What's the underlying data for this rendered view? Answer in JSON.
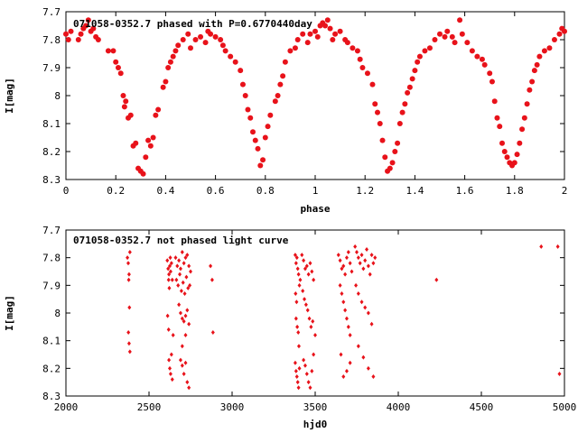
{
  "colors": {
    "points": "#e8121a",
    "axes": "#000000",
    "background": "#ffffff"
  },
  "chart_data": [
    {
      "type": "scatter",
      "title": "071058-0352.7 phased with P=0.6770440day",
      "xlabel": "phase",
      "ylabel": "I[mag]",
      "xlim": [
        0,
        2
      ],
      "ylim": [
        8.3,
        7.7
      ],
      "y_inverted": true,
      "grid": false,
      "marker": "filled-circle-large",
      "xticks": [
        "0",
        "0.2",
        "0.4",
        "0.6",
        "0.8",
        "1",
        "1.2",
        "1.4",
        "1.6",
        "1.8",
        "2"
      ],
      "yticks": [
        "7.7",
        "7.8",
        "7.9",
        "8",
        "8.1",
        "8.2",
        "8.3"
      ],
      "points": [
        [
          0.0,
          7.78
        ],
        [
          0.01,
          7.8
        ],
        [
          0.02,
          7.77
        ],
        [
          0.05,
          7.8
        ],
        [
          0.06,
          7.78
        ],
        [
          0.07,
          7.76
        ],
        [
          0.08,
          7.75
        ],
        [
          0.09,
          7.73
        ],
        [
          0.1,
          7.77
        ],
        [
          0.11,
          7.76
        ],
        [
          0.12,
          7.79
        ],
        [
          0.13,
          7.8
        ],
        [
          0.17,
          7.84
        ],
        [
          0.19,
          7.84
        ],
        [
          0.2,
          7.88
        ],
        [
          0.21,
          7.9
        ],
        [
          0.22,
          7.92
        ],
        [
          0.23,
          8.0
        ],
        [
          0.24,
          8.02
        ],
        [
          0.235,
          8.04
        ],
        [
          0.25,
          8.08
        ],
        [
          0.26,
          8.07
        ],
        [
          0.27,
          8.18
        ],
        [
          0.28,
          8.17
        ],
        [
          0.29,
          8.26
        ],
        [
          0.3,
          8.27
        ],
        [
          0.31,
          8.28
        ],
        [
          0.32,
          8.22
        ],
        [
          0.33,
          8.16
        ],
        [
          0.34,
          8.18
        ],
        [
          0.35,
          8.15
        ],
        [
          0.36,
          8.07
        ],
        [
          0.37,
          8.05
        ],
        [
          0.39,
          7.97
        ],
        [
          0.4,
          7.95
        ],
        [
          0.41,
          7.9
        ],
        [
          0.42,
          7.88
        ],
        [
          0.43,
          7.86
        ],
        [
          0.44,
          7.84
        ],
        [
          0.45,
          7.82
        ],
        [
          0.47,
          7.8
        ],
        [
          0.49,
          7.78
        ],
        [
          0.5,
          7.83
        ],
        [
          0.52,
          7.8
        ],
        [
          0.54,
          7.79
        ],
        [
          0.56,
          7.81
        ],
        [
          0.57,
          7.77
        ],
        [
          0.58,
          7.78
        ],
        [
          0.6,
          7.79
        ],
        [
          0.62,
          7.8
        ],
        [
          0.63,
          7.82
        ],
        [
          0.64,
          7.84
        ],
        [
          0.66,
          7.86
        ],
        [
          0.68,
          7.88
        ],
        [
          0.7,
          7.91
        ],
        [
          0.71,
          7.96
        ],
        [
          0.72,
          8.0
        ],
        [
          0.73,
          8.05
        ],
        [
          0.74,
          8.08
        ],
        [
          0.75,
          8.13
        ],
        [
          0.76,
          8.16
        ],
        [
          0.77,
          8.19
        ],
        [
          0.78,
          8.25
        ],
        [
          0.79,
          8.23
        ],
        [
          0.8,
          8.15
        ],
        [
          0.81,
          8.11
        ],
        [
          0.82,
          8.07
        ],
        [
          0.84,
          8.02
        ],
        [
          0.85,
          8.0
        ],
        [
          0.86,
          7.96
        ],
        [
          0.87,
          7.93
        ],
        [
          0.88,
          7.88
        ],
        [
          0.9,
          7.84
        ],
        [
          0.92,
          7.83
        ],
        [
          0.93,
          7.8
        ],
        [
          0.95,
          7.78
        ],
        [
          0.97,
          7.81
        ],
        [
          0.98,
          7.78
        ],
        [
          1.0,
          7.77
        ],
        [
          1.01,
          7.79
        ],
        [
          1.02,
          7.75
        ],
        [
          1.03,
          7.74
        ],
        [
          1.04,
          7.75
        ],
        [
          1.05,
          7.73
        ],
        [
          1.06,
          7.76
        ],
        [
          1.07,
          7.8
        ],
        [
          1.08,
          7.78
        ],
        [
          1.1,
          7.77
        ],
        [
          1.12,
          7.8
        ],
        [
          1.13,
          7.81
        ],
        [
          1.15,
          7.83
        ],
        [
          1.17,
          7.84
        ],
        [
          1.18,
          7.87
        ],
        [
          1.19,
          7.9
        ],
        [
          1.21,
          7.92
        ],
        [
          1.23,
          7.96
        ],
        [
          1.24,
          8.03
        ],
        [
          1.25,
          8.06
        ],
        [
          1.26,
          8.1
        ],
        [
          1.27,
          8.16
        ],
        [
          1.28,
          8.22
        ],
        [
          1.29,
          8.27
        ],
        [
          1.3,
          8.26
        ],
        [
          1.31,
          8.24
        ],
        [
          1.32,
          8.2
        ],
        [
          1.33,
          8.17
        ],
        [
          1.34,
          8.1
        ],
        [
          1.35,
          8.06
        ],
        [
          1.36,
          8.03
        ],
        [
          1.37,
          7.99
        ],
        [
          1.38,
          7.97
        ],
        [
          1.39,
          7.94
        ],
        [
          1.4,
          7.91
        ],
        [
          1.41,
          7.88
        ],
        [
          1.42,
          7.86
        ],
        [
          1.44,
          7.84
        ],
        [
          1.46,
          7.83
        ],
        [
          1.48,
          7.8
        ],
        [
          1.5,
          7.78
        ],
        [
          1.52,
          7.79
        ],
        [
          1.53,
          7.77
        ],
        [
          1.55,
          7.79
        ],
        [
          1.56,
          7.81
        ],
        [
          1.58,
          7.73
        ],
        [
          1.59,
          7.78
        ],
        [
          1.61,
          7.81
        ],
        [
          1.63,
          7.84
        ],
        [
          1.65,
          7.86
        ],
        [
          1.67,
          7.87
        ],
        [
          1.68,
          7.89
        ],
        [
          1.7,
          7.92
        ],
        [
          1.71,
          7.95
        ],
        [
          1.72,
          8.02
        ],
        [
          1.73,
          8.08
        ],
        [
          1.74,
          8.11
        ],
        [
          1.75,
          8.17
        ],
        [
          1.76,
          8.2
        ],
        [
          1.77,
          8.22
        ],
        [
          1.78,
          8.24
        ],
        [
          1.79,
          8.25
        ],
        [
          1.8,
          8.24
        ],
        [
          1.81,
          8.21
        ],
        [
          1.82,
          8.17
        ],
        [
          1.83,
          8.12
        ],
        [
          1.84,
          8.08
        ],
        [
          1.85,
          8.03
        ],
        [
          1.86,
          7.98
        ],
        [
          1.87,
          7.95
        ],
        [
          1.88,
          7.91
        ],
        [
          1.89,
          7.89
        ],
        [
          1.9,
          7.86
        ],
        [
          1.92,
          7.84
        ],
        [
          1.94,
          7.83
        ],
        [
          1.96,
          7.8
        ],
        [
          1.98,
          7.78
        ],
        [
          1.99,
          7.76
        ],
        [
          2.0,
          7.77
        ]
      ]
    },
    {
      "type": "scatter",
      "title": "071058-0352.7 not phased light curve",
      "xlabel": "hjd0",
      "ylabel": "I[mag]",
      "xlim": [
        2000,
        5000
      ],
      "ylim": [
        8.3,
        7.7
      ],
      "y_inverted": true,
      "grid": false,
      "marker": "diamond-small",
      "xticks": [
        "2000",
        "2500",
        "3000",
        "3500",
        "4000",
        "4500",
        "5000"
      ],
      "yticks": [
        "7.7",
        "7.8",
        "7.9",
        "8",
        "8.1",
        "8.2",
        "8.3"
      ],
      "points": [
        [
          2370,
          7.8
        ],
        [
          2375,
          7.82
        ],
        [
          2380,
          7.86
        ],
        [
          2385,
          7.78
        ],
        [
          2378,
          7.88
        ],
        [
          2382,
          7.98
        ],
        [
          2376,
          8.07
        ],
        [
          2380,
          8.11
        ],
        [
          2385,
          8.14
        ],
        [
          2610,
          7.81
        ],
        [
          2615,
          7.84
        ],
        [
          2620,
          7.86
        ],
        [
          2625,
          7.83
        ],
        [
          2618,
          7.88
        ],
        [
          2622,
          7.91
        ],
        [
          2628,
          7.8
        ],
        [
          2630,
          7.85
        ],
        [
          2635,
          7.82
        ],
        [
          2640,
          7.88
        ],
        [
          2612,
          8.01
        ],
        [
          2618,
          8.06
        ],
        [
          2620,
          8.17
        ],
        [
          2625,
          8.2
        ],
        [
          2630,
          8.22
        ],
        [
          2635,
          8.15
        ],
        [
          2640,
          8.24
        ],
        [
          2645,
          8.08
        ],
        [
          2660,
          7.8
        ],
        [
          2670,
          7.83
        ],
        [
          2680,
          7.81
        ],
        [
          2690,
          7.84
        ],
        [
          2700,
          7.78
        ],
        [
          2710,
          7.82
        ],
        [
          2720,
          7.8
        ],
        [
          2730,
          7.79
        ],
        [
          2740,
          7.83
        ],
        [
          2750,
          7.85
        ],
        [
          2665,
          7.88
        ],
        [
          2675,
          7.9
        ],
        [
          2685,
          7.86
        ],
        [
          2695,
          7.92
        ],
        [
          2705,
          7.89
        ],
        [
          2715,
          7.93
        ],
        [
          2725,
          7.87
        ],
        [
          2735,
          7.91
        ],
        [
          2745,
          7.9
        ],
        [
          2680,
          7.97
        ],
        [
          2690,
          8.0
        ],
        [
          2700,
          8.02
        ],
        [
          2710,
          8.03
        ],
        [
          2720,
          8.01
        ],
        [
          2730,
          7.99
        ],
        [
          2740,
          8.04
        ],
        [
          2690,
          8.17
        ],
        [
          2700,
          8.19
        ],
        [
          2710,
          8.22
        ],
        [
          2720,
          8.18
        ],
        [
          2730,
          8.25
        ],
        [
          2740,
          8.27
        ],
        [
          2700,
          8.12
        ],
        [
          2720,
          8.08
        ],
        [
          2870,
          7.83
        ],
        [
          2880,
          7.88
        ],
        [
          2885,
          8.07
        ],
        [
          3380,
          7.79
        ],
        [
          3385,
          7.82
        ],
        [
          3390,
          7.8
        ],
        [
          3395,
          7.84
        ],
        [
          3400,
          7.86
        ],
        [
          3405,
          7.9
        ],
        [
          3410,
          7.88
        ],
        [
          3382,
          7.93
        ],
        [
          3388,
          7.96
        ],
        [
          3385,
          8.02
        ],
        [
          3392,
          8.05
        ],
        [
          3398,
          8.07
        ],
        [
          3402,
          8.12
        ],
        [
          3380,
          8.18
        ],
        [
          3385,
          8.21
        ],
        [
          3390,
          8.23
        ],
        [
          3395,
          8.25
        ],
        [
          3400,
          8.27
        ],
        [
          3405,
          8.2
        ],
        [
          3420,
          7.79
        ],
        [
          3430,
          7.81
        ],
        [
          3440,
          7.84
        ],
        [
          3450,
          7.83
        ],
        [
          3460,
          7.86
        ],
        [
          3470,
          7.82
        ],
        [
          3480,
          7.85
        ],
        [
          3490,
          7.88
        ],
        [
          3425,
          7.92
        ],
        [
          3435,
          7.95
        ],
        [
          3445,
          7.97
        ],
        [
          3455,
          7.99
        ],
        [
          3465,
          8.02
        ],
        [
          3475,
          8.05
        ],
        [
          3485,
          8.03
        ],
        [
          3430,
          8.17
        ],
        [
          3440,
          8.19
        ],
        [
          3450,
          8.22
        ],
        [
          3460,
          8.25
        ],
        [
          3470,
          8.27
        ],
        [
          3480,
          8.21
        ],
        [
          3490,
          8.15
        ],
        [
          3500,
          8.08
        ],
        [
          3640,
          7.79
        ],
        [
          3650,
          7.81
        ],
        [
          3660,
          7.84
        ],
        [
          3670,
          7.83
        ],
        [
          3680,
          7.86
        ],
        [
          3690,
          7.8
        ],
        [
          3700,
          7.78
        ],
        [
          3710,
          7.82
        ],
        [
          3720,
          7.85
        ],
        [
          3650,
          7.9
        ],
        [
          3660,
          7.93
        ],
        [
          3670,
          7.96
        ],
        [
          3680,
          7.99
        ],
        [
          3690,
          8.02
        ],
        [
          3700,
          8.05
        ],
        [
          3710,
          8.08
        ],
        [
          3655,
          8.15
        ],
        [
          3670,
          8.23
        ],
        [
          3690,
          8.21
        ],
        [
          3710,
          8.18
        ],
        [
          3740,
          7.76
        ],
        [
          3750,
          7.78
        ],
        [
          3760,
          7.8
        ],
        [
          3770,
          7.82
        ],
        [
          3780,
          7.79
        ],
        [
          3790,
          7.84
        ],
        [
          3800,
          7.81
        ],
        [
          3810,
          7.77
        ],
        [
          3820,
          7.83
        ],
        [
          3830,
          7.86
        ],
        [
          3840,
          7.79
        ],
        [
          3850,
          7.82
        ],
        [
          3860,
          7.8
        ],
        [
          3745,
          7.9
        ],
        [
          3760,
          7.93
        ],
        [
          3780,
          7.96
        ],
        [
          3800,
          7.98
        ],
        [
          3820,
          8.0
        ],
        [
          3840,
          8.04
        ],
        [
          3760,
          8.12
        ],
        [
          3790,
          8.16
        ],
        [
          3820,
          8.2
        ],
        [
          3850,
          8.23
        ],
        [
          4230,
          7.88
        ],
        [
          4860,
          7.76
        ],
        [
          4960,
          7.76
        ],
        [
          4970,
          8.22
        ]
      ]
    }
  ]
}
